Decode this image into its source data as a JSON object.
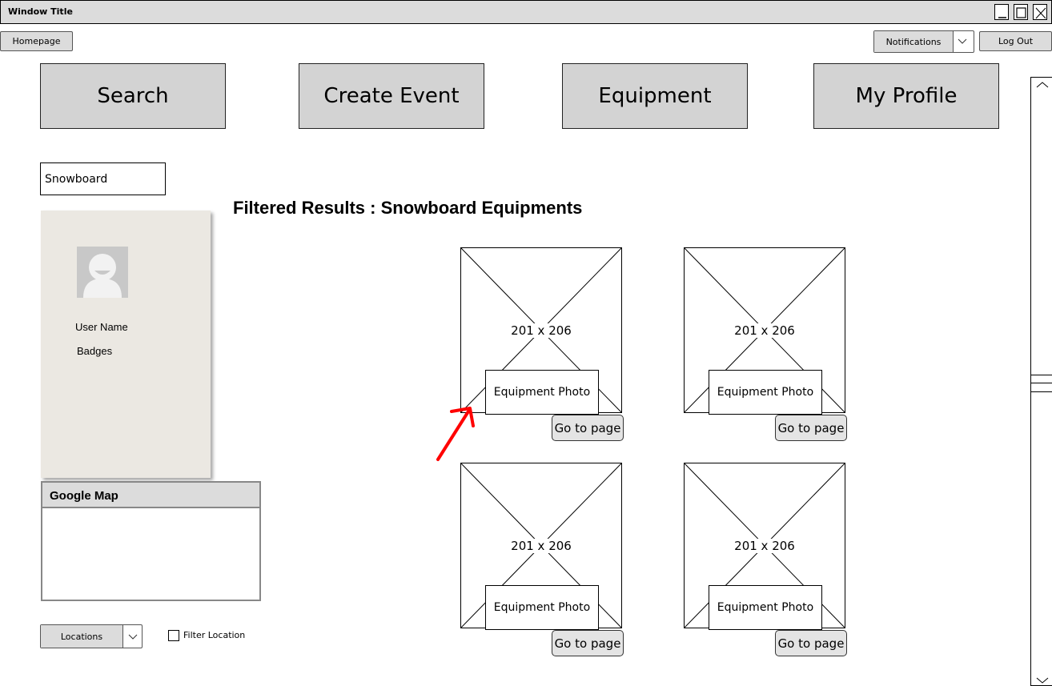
{
  "window": {
    "title": "Window Title"
  },
  "topbar": {
    "homepage_label": "Homepage",
    "notifications_label": "Notifications",
    "logout_label": "Log Out"
  },
  "nav": {
    "search_label": "Search",
    "create_event_label": "Create Event",
    "equipment_label": "Equipment",
    "profile_label": "My Profile"
  },
  "search": {
    "value": "Snowboard"
  },
  "profile": {
    "username": "User Name",
    "badges": "Badges"
  },
  "results": {
    "heading": "Filtered Results : Snowboard Equipments",
    "cards": [
      {
        "dimensions": "201 x 206",
        "photo_label": "Equipment Photo",
        "button_label": "Go to page"
      },
      {
        "dimensions": "201 x 206",
        "photo_label": "Equipment Photo",
        "button_label": "Go to page"
      },
      {
        "dimensions": "201 x 206",
        "photo_label": "Equipment Photo",
        "button_label": "Go to page"
      },
      {
        "dimensions": "201 x 206",
        "photo_label": "Equipment Photo",
        "button_label": "Go to page"
      }
    ]
  },
  "map": {
    "title": "Google Map"
  },
  "location": {
    "dropdown_label": "Locations",
    "filter_label": "Filter Location"
  },
  "annotation": {
    "arrow_color": "#ff0000"
  },
  "icons": {
    "window_controls": [
      "minimize-icon",
      "maximize-icon",
      "close-icon"
    ],
    "dropdowns": "chevron-down-icon",
    "avatar": "user-avatar-icon"
  }
}
